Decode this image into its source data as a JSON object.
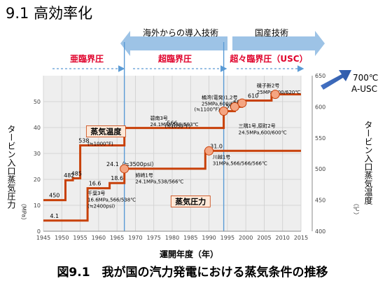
{
  "page_title": "9.1 高効率化",
  "figure_caption": "図9.1　我が国の汽力発電における蒸気条件の推移",
  "eras": {
    "technology": [
      {
        "label": "海外からの導入技術",
        "from": 1967,
        "to": 1994
      },
      {
        "label": "国産技術",
        "from": 1994,
        "to": 2015
      }
    ],
    "pressure": [
      {
        "label": "亜臨界圧",
        "from": 1945,
        "to": 1967
      },
      {
        "label": "超臨界圧",
        "from": 1967,
        "to": 1994
      },
      {
        "label": "超々臨界圧（USC）",
        "from": 1994,
        "to": 2015
      }
    ],
    "future_label_1": "700℃",
    "future_label_2": "A-USC"
  },
  "chart_data": {
    "type": "line",
    "title": "",
    "xlabel": "運開年度（年）",
    "xlim": [
      1945,
      2015
    ],
    "x_ticks": [
      1945,
      1950,
      1955,
      1960,
      1965,
      1970,
      1975,
      1980,
      1985,
      1990,
      1995,
      2000,
      2005,
      2010,
      2015
    ],
    "y_left": {
      "label": "タービン入口蒸気圧力",
      "unit": "（MPa）",
      "range": [
        0,
        60
      ],
      "ticks": [
        0,
        10,
        20,
        30,
        40,
        50
      ]
    },
    "y_right": {
      "label": "タービン入口蒸気温度",
      "unit": "（℃）",
      "range": [
        400,
        650
      ],
      "ticks": [
        400,
        450,
        500,
        550,
        600,
        650
      ]
    },
    "series": [
      {
        "name": "蒸気温度",
        "axis": "right",
        "color": "#c8410a",
        "points": [
          [
            1945,
            450
          ],
          [
            1951,
            450
          ],
          [
            1951,
            482
          ],
          [
            1953,
            482
          ],
          [
            1953,
            485
          ],
          [
            1955,
            485
          ],
          [
            1955,
            538
          ],
          [
            1967,
            538
          ],
          [
            1967,
            566
          ],
          [
            1994,
            566
          ],
          [
            1994,
            593
          ],
          [
            1997,
            593
          ],
          [
            1997,
            600
          ],
          [
            1999,
            600
          ],
          [
            1999,
            610
          ],
          [
            2007,
            610
          ],
          [
            2007,
            620
          ],
          [
            2015,
            620
          ]
        ],
        "labels": [
          {
            "x": 1948,
            "value": 450,
            "text": "450"
          },
          {
            "x": 1952,
            "value": 482,
            "text": "482"
          },
          {
            "x": 1954,
            "value": 485,
            "text": "485"
          },
          {
            "x": 1956,
            "value": 538,
            "text": "538"
          },
          {
            "x": 1980,
            "value": 566,
            "text": "566"
          },
          {
            "x": 1996,
            "value": 593,
            "text": "593"
          },
          {
            "x": 1998,
            "value": 600,
            "text": "600"
          },
          {
            "x": 2002,
            "value": 610,
            "text": "610"
          }
        ]
      },
      {
        "name": "蒸気圧力",
        "axis": "left",
        "color": "#c8410a",
        "points": [
          [
            1945,
            4.1
          ],
          [
            1957,
            4.1
          ],
          [
            1957,
            16.6
          ],
          [
            1963,
            16.6
          ],
          [
            1963,
            18.6
          ],
          [
            1967,
            18.6
          ],
          [
            1967,
            24.1
          ],
          [
            1989,
            24.1
          ],
          [
            1989,
            31.0
          ],
          [
            1994,
            31.0
          ],
          [
            1994,
            31.0
          ],
          [
            2015,
            31.0
          ]
        ],
        "labels": [
          {
            "x": 1948,
            "value": 4.1,
            "text": "4.1"
          },
          {
            "x": 1959,
            "value": 16.6,
            "text": "16.6"
          },
          {
            "x": 1965,
            "value": 18.6,
            "text": "18.6"
          },
          {
            "x": 1969,
            "value": 24.1,
            "text": "24.1（≒3500psi）"
          },
          {
            "x": 1992,
            "value": 31.0,
            "text": "31.0"
          }
        ]
      }
    ],
    "annotations": [
      {
        "text": "(≒1000°F)",
        "x": 1957,
        "y_right": 538
      },
      {
        "text": "(≒1050°F)",
        "x": 1978,
        "y_right": 566
      },
      {
        "text": "(≒1100°F)",
        "x": 1986,
        "y_right": 593
      },
      {
        "text": "千葉3号",
        "x": 1957,
        "y_left": 14
      },
      {
        "text": "16.6MPa,566/538℃",
        "x": 1957,
        "y_left": 11.5
      },
      {
        "text": "(≒2400psi)",
        "x": 1957,
        "y_left": 9
      },
      {
        "text": "姉崎1号",
        "x": 1970,
        "y_left": 21
      },
      {
        "text": "24.1MPa,538/566℃",
        "x": 1970,
        "y_left": 18.5
      },
      {
        "text": "碧南3号",
        "x": 1974,
        "y_left": 43
      },
      {
        "text": "24.1MPa,538/593℃",
        "x": 1974,
        "y_left": 40.5
      },
      {
        "text": "川越1号",
        "x": 1991,
        "y_left": 28
      },
      {
        "text": "31MPa,566/566/566℃",
        "x": 1991,
        "y_left": 25.5
      },
      {
        "text": "橘湾(電発)1,2号",
        "x": 1988,
        "y_left": 51
      },
      {
        "text": "25MPa,600/610℃",
        "x": 1988,
        "y_left": 48.5
      },
      {
        "text": "三隅1号,原町2号",
        "x": 1998,
        "y_left": 40
      },
      {
        "text": "24.5MPa,600/600℃",
        "x": 1998,
        "y_left": 37.5
      },
      {
        "text": "磯子新2号",
        "x": 2003,
        "y_left": 55.5
      },
      {
        "text": "25MPa,600/620℃",
        "x": 2003,
        "y_left": 53
      }
    ],
    "markers": [
      {
        "x": 1967,
        "y_left": 24.1
      },
      {
        "x": 1990,
        "y_left": 31.0
      },
      {
        "x": 1994,
        "y_right": 593
      },
      {
        "x": 1997,
        "y_right": 600
      },
      {
        "x": 1999,
        "y_right": 606
      },
      {
        "x": 2008,
        "y_right": 620
      }
    ],
    "region_labels": [
      {
        "text": "蒸気温度",
        "x": 1962,
        "y_left": 38.5
      },
      {
        "text": "蒸気圧力",
        "x": 1985,
        "y_left": 11.5
      }
    ],
    "grid": true
  }
}
